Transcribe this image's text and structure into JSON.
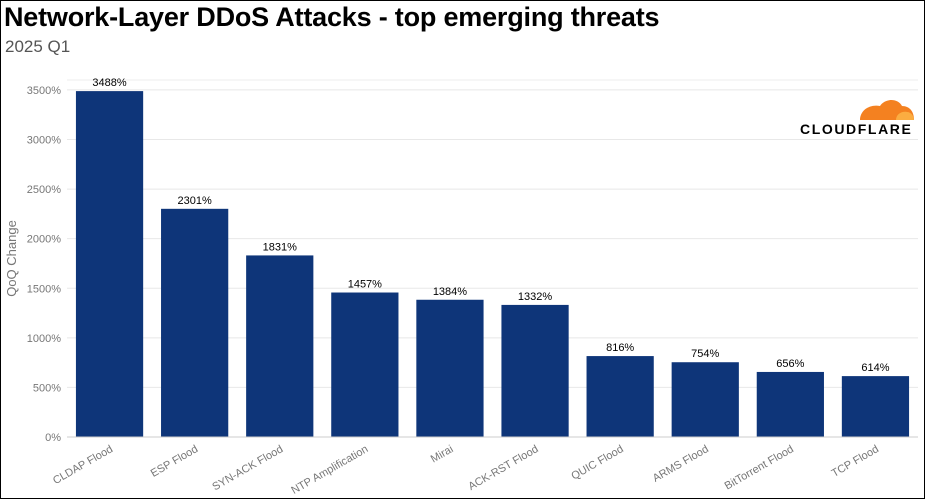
{
  "header": {
    "title": "Network-Layer DDoS Attacks - top emerging threats",
    "subtitle": "2025 Q1"
  },
  "brand": {
    "logo_text": "CLOUDFLARE",
    "logo_color": "#F48120",
    "logo_color_light": "#FBAD41"
  },
  "chart_data": {
    "type": "bar",
    "title": "Network-Layer DDoS Attacks - top emerging threats",
    "subtitle": "2025 Q1",
    "xlabel": "",
    "ylabel": "QoQ Change",
    "ylim": [
      0,
      3600
    ],
    "yticks": [
      0,
      500,
      1000,
      1500,
      2000,
      2500,
      3000,
      3500
    ],
    "ytick_labels": [
      "0%",
      "500%",
      "1000%",
      "1500%",
      "2000%",
      "2500%",
      "3000%",
      "3500%"
    ],
    "categories": [
      "CLDAP Flood",
      "ESP Flood",
      "SYN-ACK Flood",
      "NTP Amplification",
      "Mirai",
      "ACK-RST Flood",
      "QUIC Flood",
      "ARMS Flood",
      "BitTorrent Flood",
      "TCP Flood"
    ],
    "values": [
      3488,
      2301,
      1831,
      1457,
      1384,
      1332,
      816,
      754,
      656,
      614
    ],
    "value_labels": [
      "3488%",
      "2301%",
      "1831%",
      "1457%",
      "1384%",
      "1332%",
      "816%",
      "754%",
      "656%",
      "614%"
    ],
    "bar_color": "#0E3579",
    "grid": true,
    "legend": "none"
  }
}
